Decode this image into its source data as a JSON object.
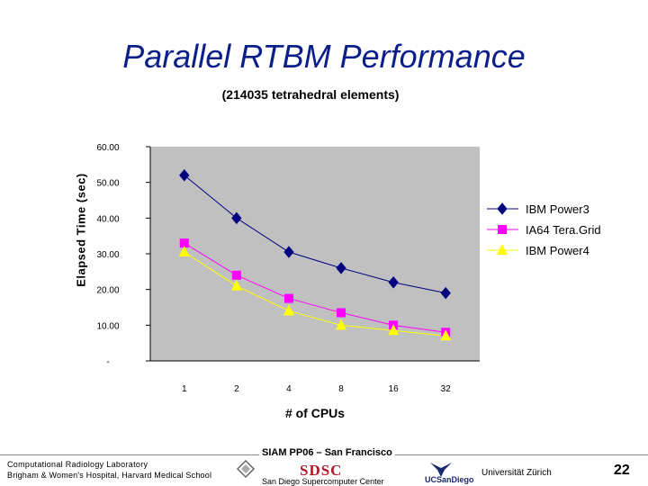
{
  "slide": {
    "title": "Parallel RTBM Performance",
    "footer": {
      "venue": "SIAM PP06 – San Francisco",
      "lab_name": "Computational Radiology Laboratory",
      "lab_affiliation": "Brigham & Women's Hospital, Harvard Medical School",
      "sdsc_logo_text": "SDSC",
      "sdsc_name": "San Diego Supercomputer Center",
      "university": "Universität Zürich",
      "page_number": "22"
    }
  },
  "chart_data": {
    "type": "line",
    "title": "",
    "subtitle": "(214035 tetrahedral elements)",
    "xlabel": "# of CPUs",
    "ylabel": "Elapsed Time (sec)",
    "categories": [
      "1",
      "2",
      "4",
      "8",
      "16",
      "32"
    ],
    "y_tick_labels": [
      "-",
      "10.00",
      "20.00",
      "30.00",
      "40.00",
      "50.00",
      "60.00"
    ],
    "ylim": [
      0,
      60
    ],
    "grid": false,
    "plot_background": "#c0c0c0",
    "legend_position": "right",
    "series": [
      {
        "name": "IBM Power3",
        "values": [
          52.0,
          40.0,
          30.5,
          26.0,
          22.0,
          19.0
        ],
        "color": "#000080",
        "marker": "diamond"
      },
      {
        "name": "IA64 Tera.Grid",
        "values": [
          33.0,
          24.0,
          17.5,
          13.5,
          10.0,
          8.0
        ],
        "color": "#ff00ff",
        "marker": "square"
      },
      {
        "name": "IBM Power4",
        "values": [
          30.5,
          21.0,
          14.0,
          10.0,
          8.5,
          7.0
        ],
        "color": "#ffff00",
        "marker": "triangle"
      }
    ]
  }
}
